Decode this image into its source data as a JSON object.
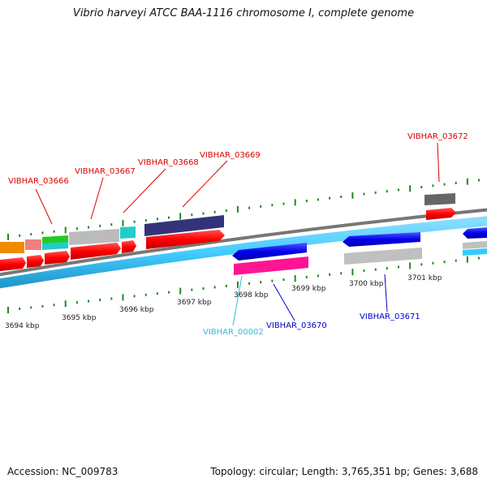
{
  "title": "Vibrio harveyi ATCC BAA-1116 chromosome I, complete genome",
  "footer": {
    "accession": "Accession: NC_009783",
    "summary": "Topology: circular; Length: 3,765,351 bp; Genes: 3,688"
  },
  "ticks": [
    {
      "label": "3694 kbp"
    },
    {
      "label": "3695 kbp"
    },
    {
      "label": "3696 kbp"
    },
    {
      "label": "3697 kbp"
    },
    {
      "label": "3698 kbp"
    },
    {
      "label": "3699 kbp"
    },
    {
      "label": "3700 kbp"
    },
    {
      "label": "3701 kbp"
    }
  ],
  "gene_labels": [
    {
      "name": "VIBHAR_03666",
      "color": "#dd0000"
    },
    {
      "name": "VIBHAR_03667",
      "color": "#dd0000"
    },
    {
      "name": "VIBHAR_03668",
      "color": "#dd0000"
    },
    {
      "name": "VIBHAR_03669",
      "color": "#dd0000"
    },
    {
      "name": "VIBHAR_03672",
      "color": "#dd0000"
    },
    {
      "name": "VIBHAR_00002",
      "color": "#33bbdd"
    },
    {
      "name": "VIBHAR_03670",
      "color": "#0000cc"
    },
    {
      "name": "VIBHAR_03671",
      "color": "#0000cc"
    }
  ],
  "colors": {
    "forward_gene": "#ff0000",
    "reverse_gene": "#0000ff",
    "backbone": "#888888",
    "tick": "#228822",
    "cds_band": "#44ccff",
    "rna": "#ff1493",
    "pseudo": "#c8c8c8"
  }
}
